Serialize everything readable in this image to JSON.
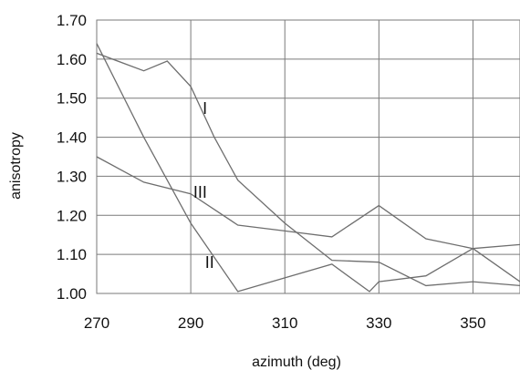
{
  "chart_data": {
    "type": "line",
    "xlabel": "azimuth (deg)",
    "ylabel": "anisotropy",
    "xlim": [
      270,
      360
    ],
    "ylim": [
      1.0,
      1.7
    ],
    "x_ticks": [
      "270",
      "290",
      "310",
      "330",
      "350"
    ],
    "y_ticks": [
      "1.00",
      "1.10",
      "1.20",
      "1.30",
      "1.40",
      "1.50",
      "1.60",
      "1.70"
    ],
    "grid": true,
    "series": [
      {
        "name": "I",
        "x": [
          270,
          280,
          285,
          290,
          295,
          300,
          310,
          320,
          330,
          340,
          350,
          360
        ],
        "values": [
          1.615,
          1.57,
          1.595,
          1.53,
          1.4,
          1.29,
          1.18,
          1.085,
          1.08,
          1.02,
          1.03,
          1.02
        ]
      },
      {
        "name": "II",
        "x": [
          270,
          280,
          290,
          300,
          310,
          320,
          328,
          330,
          340,
          350,
          360
        ],
        "values": [
          1.64,
          1.4,
          1.18,
          1.005,
          1.04,
          1.075,
          1.005,
          1.03,
          1.045,
          1.115,
          1.03
        ]
      },
      {
        "name": "III",
        "x": [
          270,
          280,
          290,
          300,
          310,
          320,
          330,
          340,
          350,
          360
        ],
        "values": [
          1.35,
          1.285,
          1.255,
          1.175,
          1.16,
          1.145,
          1.225,
          1.14,
          1.115,
          1.125
        ]
      }
    ],
    "series_label_positions": [
      {
        "name": "I",
        "x": 293,
        "y": 1.46
      },
      {
        "name": "II",
        "x": 294,
        "y": 1.065
      },
      {
        "name": "III",
        "x": 292,
        "y": 1.245
      }
    ]
  }
}
